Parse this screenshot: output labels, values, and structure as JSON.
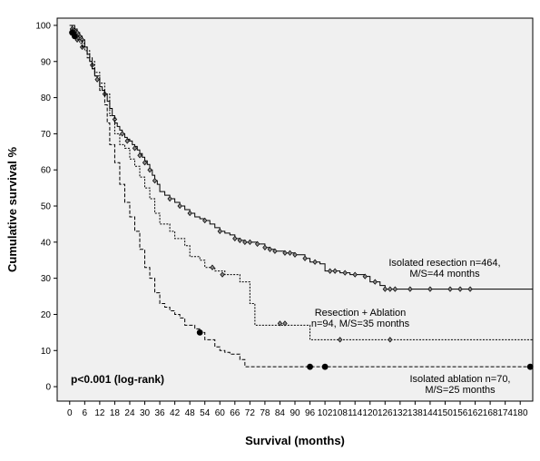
{
  "chart_data": {
    "type": "line",
    "subtype": "kaplan-meier",
    "title": "",
    "xlabel": "Survival (months)",
    "ylabel": "Cumulative survival %",
    "xlim": [
      -5,
      185
    ],
    "ylim": [
      -4,
      102
    ],
    "xticks": [
      0,
      6,
      12,
      18,
      24,
      30,
      36,
      42,
      48,
      54,
      60,
      66,
      72,
      78,
      84,
      90,
      96,
      102,
      108,
      114,
      120,
      126,
      132,
      138,
      144,
      150,
      156,
      162,
      168,
      174,
      180
    ],
    "yticks": [
      0,
      10,
      20,
      30,
      40,
      50,
      60,
      70,
      80,
      90,
      100
    ],
    "grid": false,
    "background": "#f0f0f0",
    "annotation": "p<0.001 (log-rank)",
    "series": [
      {
        "name": "Isolated resection",
        "label_lines": [
          "Isolated resection n=464,",
          "M/S=44 months"
        ],
        "style": "solid",
        "marker": "diamond",
        "steps": [
          [
            0,
            100
          ],
          [
            2,
            99
          ],
          [
            3,
            98
          ],
          [
            4,
            97
          ],
          [
            5,
            96
          ],
          [
            6,
            94
          ],
          [
            7,
            92
          ],
          [
            8,
            90
          ],
          [
            9,
            88
          ],
          [
            10,
            86
          ],
          [
            11,
            85
          ],
          [
            12,
            83
          ],
          [
            13,
            82
          ],
          [
            14,
            81
          ],
          [
            15,
            79
          ],
          [
            16,
            77
          ],
          [
            17,
            75
          ],
          [
            18,
            73
          ],
          [
            19,
            72
          ],
          [
            20,
            71
          ],
          [
            21,
            70
          ],
          [
            22,
            69
          ],
          [
            23,
            68.5
          ],
          [
            24,
            68
          ],
          [
            25,
            67
          ],
          [
            26,
            66.5
          ],
          [
            27,
            65.5
          ],
          [
            28,
            64.5
          ],
          [
            29,
            63.5
          ],
          [
            30,
            62.5
          ],
          [
            31,
            61.5
          ],
          [
            32,
            60
          ],
          [
            33,
            58.5
          ],
          [
            34,
            57
          ],
          [
            35,
            56
          ],
          [
            36,
            54
          ],
          [
            38,
            53
          ],
          [
            40,
            52
          ],
          [
            42,
            51
          ],
          [
            44,
            50
          ],
          [
            46,
            49
          ],
          [
            48,
            48
          ],
          [
            50,
            47
          ],
          [
            52,
            46.5
          ],
          [
            54,
            46
          ],
          [
            56,
            45
          ],
          [
            58,
            44
          ],
          [
            60,
            43
          ],
          [
            62,
            42.5
          ],
          [
            64,
            42
          ],
          [
            66,
            41
          ],
          [
            68,
            40.5
          ],
          [
            70,
            40
          ],
          [
            75,
            39.5
          ],
          [
            78,
            38.5
          ],
          [
            80,
            38
          ],
          [
            82,
            37.5
          ],
          [
            86,
            37
          ],
          [
            90,
            36.5
          ],
          [
            94,
            35.5
          ],
          [
            96,
            34.5
          ],
          [
            100,
            34
          ],
          [
            102,
            32
          ],
          [
            108,
            31.5
          ],
          [
            112,
            31
          ],
          [
            118,
            30.5
          ],
          [
            120,
            29
          ],
          [
            124,
            28
          ],
          [
            126,
            27
          ],
          [
            185,
            27
          ]
        ],
        "censored": [
          [
            1,
            99
          ],
          [
            2,
            98.5
          ],
          [
            3,
            98
          ],
          [
            4,
            97
          ],
          [
            5,
            96
          ],
          [
            9,
            89
          ],
          [
            11,
            85
          ],
          [
            14,
            81
          ],
          [
            18,
            74
          ],
          [
            21,
            70
          ],
          [
            23,
            68
          ],
          [
            26,
            66
          ],
          [
            28,
            64
          ],
          [
            30,
            62
          ],
          [
            32,
            60
          ],
          [
            34,
            57
          ],
          [
            40,
            52
          ],
          [
            44,
            50
          ],
          [
            48,
            48
          ],
          [
            54,
            46
          ],
          [
            60,
            43
          ],
          [
            66,
            41
          ],
          [
            68,
            40.5
          ],
          [
            70,
            40
          ],
          [
            72,
            40
          ],
          [
            75,
            39.5
          ],
          [
            78,
            38.5
          ],
          [
            80,
            38
          ],
          [
            82,
            37.5
          ],
          [
            86,
            37
          ],
          [
            88,
            37
          ],
          [
            90,
            36.5
          ],
          [
            94,
            35.5
          ],
          [
            98,
            34.5
          ],
          [
            104,
            32
          ],
          [
            106,
            32
          ],
          [
            110,
            31.5
          ],
          [
            114,
            31
          ],
          [
            118,
            30.5
          ],
          [
            122,
            29
          ],
          [
            126,
            27
          ],
          [
            128,
            27
          ],
          [
            130,
            27
          ],
          [
            136,
            27
          ],
          [
            144,
            27
          ],
          [
            152,
            27
          ],
          [
            156,
            27
          ],
          [
            160,
            27
          ]
        ]
      },
      {
        "name": "Resection + Ablation",
        "label_lines": [
          "Resection + Ablation",
          "n=94, M/S=35 months"
        ],
        "style": "dotted",
        "marker": "diamond",
        "steps": [
          [
            0,
            100
          ],
          [
            2,
            97
          ],
          [
            4,
            95
          ],
          [
            6,
            93
          ],
          [
            8,
            90
          ],
          [
            10,
            87
          ],
          [
            12,
            84
          ],
          [
            14,
            81
          ],
          [
            16,
            75
          ],
          [
            18,
            70
          ],
          [
            20,
            67
          ],
          [
            22,
            66
          ],
          [
            24,
            63
          ],
          [
            26,
            61
          ],
          [
            28,
            58
          ],
          [
            30,
            55
          ],
          [
            32,
            52
          ],
          [
            34,
            48
          ],
          [
            36,
            45
          ],
          [
            40,
            43
          ],
          [
            42,
            41
          ],
          [
            46,
            39
          ],
          [
            48,
            36
          ],
          [
            52,
            35
          ],
          [
            54,
            33
          ],
          [
            58,
            32
          ],
          [
            62,
            31
          ],
          [
            64,
            31
          ],
          [
            68,
            29
          ],
          [
            72,
            23
          ],
          [
            74,
            17
          ],
          [
            86,
            17
          ],
          [
            96,
            13
          ],
          [
            185,
            13
          ]
        ],
        "censored": [
          [
            1,
            99
          ],
          [
            3,
            96
          ],
          [
            5,
            94
          ],
          [
            57,
            33
          ],
          [
            61,
            31
          ],
          [
            84,
            17.5
          ],
          [
            86,
            17.5
          ],
          [
            108,
            13
          ],
          [
            128,
            13
          ]
        ]
      },
      {
        "name": "Isolated ablation",
        "label_lines": [
          "Isolated ablation n=70,",
          "M/S=25 months"
        ],
        "style": "dashed",
        "marker": "circle",
        "steps": [
          [
            0,
            100
          ],
          [
            1,
            98
          ],
          [
            3,
            96
          ],
          [
            5,
            94
          ],
          [
            7,
            91
          ],
          [
            9,
            88
          ],
          [
            10,
            86
          ],
          [
            12,
            82
          ],
          [
            14,
            78
          ],
          [
            15,
            73
          ],
          [
            16,
            67
          ],
          [
            18,
            62
          ],
          [
            20,
            56
          ],
          [
            22,
            51
          ],
          [
            24,
            47
          ],
          [
            26,
            43
          ],
          [
            28,
            38
          ],
          [
            30,
            33
          ],
          [
            32,
            30
          ],
          [
            34,
            26
          ],
          [
            36,
            23
          ],
          [
            38,
            22
          ],
          [
            40,
            21
          ],
          [
            42,
            20
          ],
          [
            44,
            19
          ],
          [
            46,
            17
          ],
          [
            50,
            16
          ],
          [
            52,
            15
          ],
          [
            54,
            13
          ],
          [
            58,
            11
          ],
          [
            60,
            10
          ],
          [
            62,
            9.5
          ],
          [
            64,
            9
          ],
          [
            68,
            7.5
          ],
          [
            70,
            5.5
          ],
          [
            185,
            5.5
          ]
        ],
        "censored": [
          [
            1,
            98
          ],
          [
            2,
            97
          ],
          [
            52,
            15
          ],
          [
            96,
            5.5
          ],
          [
            102,
            5.5
          ],
          [
            184,
            5.5
          ]
        ]
      }
    ]
  }
}
